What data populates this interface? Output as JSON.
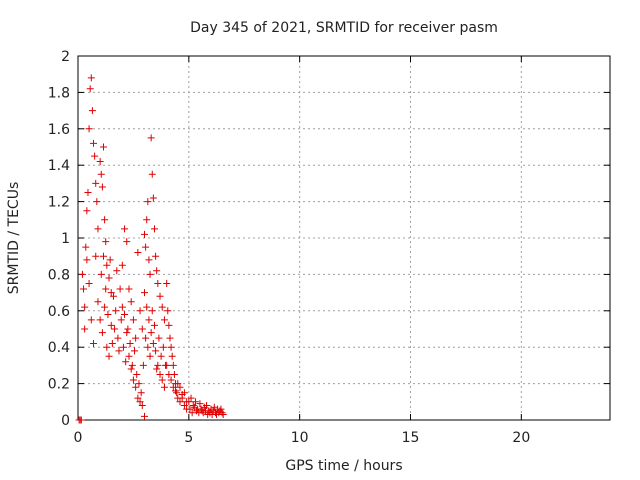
{
  "chart_data": {
    "type": "scatter",
    "title": "Day 345 of 2021, SRMTID for receiver pasm",
    "xlabel": "GPS time / hours",
    "ylabel": "SRMTID / TECUs",
    "xlim": [
      0,
      24
    ],
    "ylim": [
      0,
      2
    ],
    "xticks": [
      0,
      5,
      10,
      15,
      20
    ],
    "yticks": [
      0,
      0.2,
      0.4,
      0.6,
      0.8,
      1,
      1.2,
      1.4,
      1.6,
      1.8,
      2
    ],
    "xtick_labels": [
      "0",
      "5",
      "10",
      "15",
      "20"
    ],
    "ytick_labels": [
      "0",
      "0.2",
      "0.4",
      "0.6",
      "0.8",
      "1",
      "1.2",
      "1.4",
      "1.6",
      "1.8",
      "2"
    ],
    "grid": true,
    "marker": "plus",
    "color": "#e00000",
    "series": [
      {
        "name": "SRMTID",
        "points": [
          [
            0.05,
            0.0
          ],
          [
            0.1,
            0.0
          ],
          [
            0.15,
            0.0
          ],
          [
            0.2,
            0.8
          ],
          [
            0.25,
            0.72
          ],
          [
            0.3,
            0.5
          ],
          [
            0.35,
            0.95
          ],
          [
            0.4,
            1.15
          ],
          [
            0.45,
            1.25
          ],
          [
            0.5,
            1.6
          ],
          [
            0.55,
            1.82
          ],
          [
            0.6,
            1.88
          ],
          [
            0.65,
            1.7
          ],
          [
            0.7,
            1.52
          ],
          [
            0.75,
            1.45
          ],
          [
            0.8,
            1.3
          ],
          [
            0.85,
            1.2
          ],
          [
            0.9,
            1.05
          ],
          [
            0.3,
            0.62
          ],
          [
            0.4,
            0.88
          ],
          [
            0.5,
            0.75
          ],
          [
            0.6,
            0.55
          ],
          [
            0.7,
            0.42
          ],
          [
            0.8,
            0.9
          ],
          [
            0.9,
            0.65
          ],
          [
            1.0,
            1.42
          ],
          [
            1.05,
            1.35
          ],
          [
            1.1,
            1.28
          ],
          [
            1.15,
            1.5
          ],
          [
            1.2,
            1.1
          ],
          [
            1.25,
            0.98
          ],
          [
            1.3,
            0.85
          ],
          [
            1.4,
            0.78
          ],
          [
            1.5,
            0.7
          ],
          [
            1.0,
            0.55
          ],
          [
            1.1,
            0.48
          ],
          [
            1.2,
            0.62
          ],
          [
            1.3,
            0.4
          ],
          [
            1.4,
            0.35
          ],
          [
            1.5,
            0.52
          ],
          [
            1.6,
            0.68
          ],
          [
            1.7,
            0.6
          ],
          [
            1.8,
            0.45
          ],
          [
            1.9,
            0.72
          ],
          [
            1.05,
            0.8
          ],
          [
            1.15,
            0.9
          ],
          [
            1.25,
            0.72
          ],
          [
            1.35,
            0.58
          ],
          [
            1.45,
            0.88
          ],
          [
            1.55,
            0.42
          ],
          [
            1.65,
            0.5
          ],
          [
            1.75,
            0.82
          ],
          [
            1.85,
            0.38
          ],
          [
            1.95,
            0.55
          ],
          [
            2.0,
            0.62
          ],
          [
            2.1,
            0.58
          ],
          [
            2.2,
            0.48
          ],
          [
            2.3,
            0.35
          ],
          [
            2.4,
            0.28
          ],
          [
            2.5,
            0.22
          ],
          [
            2.6,
            0.18
          ],
          [
            2.7,
            0.12
          ],
          [
            2.8,
            0.1
          ],
          [
            2.9,
            0.08
          ],
          [
            2.0,
            0.85
          ],
          [
            2.1,
            1.05
          ],
          [
            2.2,
            0.98
          ],
          [
            2.3,
            0.72
          ],
          [
            2.4,
            0.65
          ],
          [
            2.5,
            0.55
          ],
          [
            2.6,
            0.45
          ],
          [
            2.7,
            0.92
          ],
          [
            2.8,
            0.6
          ],
          [
            2.9,
            0.5
          ],
          [
            2.05,
            0.4
          ],
          [
            2.15,
            0.32
          ],
          [
            2.25,
            0.5
          ],
          [
            2.35,
            0.42
          ],
          [
            2.45,
            0.3
          ],
          [
            2.55,
            0.38
          ],
          [
            2.65,
            0.25
          ],
          [
            2.75,
            0.2
          ],
          [
            2.85,
            0.15
          ],
          [
            2.95,
            0.3
          ],
          [
            3.0,
            1.02
          ],
          [
            3.05,
            0.95
          ],
          [
            3.1,
            1.1
          ],
          [
            3.15,
            1.2
          ],
          [
            3.2,
            0.88
          ],
          [
            3.25,
            0.8
          ],
          [
            3.3,
            1.55
          ],
          [
            3.35,
            1.35
          ],
          [
            3.4,
            1.22
          ],
          [
            3.45,
            1.05
          ],
          [
            3.5,
            0.9
          ],
          [
            3.55,
            0.82
          ],
          [
            3.6,
            0.75
          ],
          [
            3.7,
            0.68
          ],
          [
            3.8,
            0.62
          ],
          [
            3.9,
            0.55
          ],
          [
            3.0,
            0.7
          ],
          [
            3.1,
            0.62
          ],
          [
            3.2,
            0.55
          ],
          [
            3.3,
            0.48
          ],
          [
            3.4,
            0.42
          ],
          [
            3.5,
            0.38
          ],
          [
            3.6,
            0.3
          ],
          [
            3.7,
            0.25
          ],
          [
            3.8,
            0.22
          ],
          [
            3.9,
            0.18
          ],
          [
            3.05,
            0.45
          ],
          [
            3.15,
            0.4
          ],
          [
            3.25,
            0.35
          ],
          [
            3.35,
            0.6
          ],
          [
            3.45,
            0.52
          ],
          [
            3.55,
            0.28
          ],
          [
            3.65,
            0.45
          ],
          [
            3.75,
            0.35
          ],
          [
            3.85,
            0.4
          ],
          [
            3.95,
            0.3
          ],
          [
            3.0,
            0.02
          ],
          [
            4.0,
            0.75
          ],
          [
            4.05,
            0.6
          ],
          [
            4.1,
            0.52
          ],
          [
            4.15,
            0.45
          ],
          [
            4.2,
            0.4
          ],
          [
            4.25,
            0.35
          ],
          [
            4.3,
            0.3
          ],
          [
            4.35,
            0.25
          ],
          [
            4.4,
            0.2
          ],
          [
            4.45,
            0.15
          ],
          [
            4.5,
            0.12
          ],
          [
            4.6,
            0.1
          ],
          [
            4.7,
            0.14
          ],
          [
            4.8,
            0.08
          ],
          [
            4.9,
            0.1
          ],
          [
            4.0,
            0.3
          ],
          [
            4.1,
            0.25
          ],
          [
            4.2,
            0.22
          ],
          [
            4.3,
            0.18
          ],
          [
            4.4,
            0.16
          ],
          [
            4.5,
            0.2
          ],
          [
            4.6,
            0.18
          ],
          [
            4.7,
            0.12
          ],
          [
            4.8,
            0.15
          ],
          [
            4.9,
            0.06
          ],
          [
            5.0,
            0.1
          ],
          [
            5.1,
            0.12
          ],
          [
            5.2,
            0.08
          ],
          [
            5.3,
            0.1
          ],
          [
            5.4,
            0.06
          ],
          [
            5.5,
            0.09
          ],
          [
            5.6,
            0.05
          ],
          [
            5.7,
            0.07
          ],
          [
            5.8,
            0.08
          ],
          [
            5.9,
            0.05
          ],
          [
            5.05,
            0.06
          ],
          [
            5.15,
            0.04
          ],
          [
            5.25,
            0.07
          ],
          [
            5.35,
            0.05
          ],
          [
            5.45,
            0.04
          ],
          [
            5.55,
            0.06
          ],
          [
            5.65,
            0.04
          ],
          [
            5.75,
            0.05
          ],
          [
            5.85,
            0.03
          ],
          [
            5.95,
            0.04
          ],
          [
            6.0,
            0.06
          ],
          [
            6.1,
            0.05
          ],
          [
            6.2,
            0.04
          ],
          [
            6.3,
            0.06
          ],
          [
            6.4,
            0.05
          ],
          [
            6.5,
            0.04
          ],
          [
            6.55,
            0.03
          ],
          [
            6.05,
            0.03
          ],
          [
            6.15,
            0.07
          ],
          [
            6.25,
            0.03
          ],
          [
            6.35,
            0.04
          ],
          [
            6.45,
            0.06
          ]
        ]
      }
    ]
  }
}
